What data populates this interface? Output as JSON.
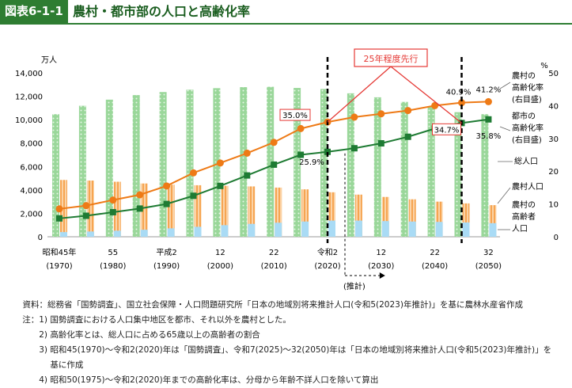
{
  "header": {
    "figure_label": "図表6-1-1",
    "title": "農村・都市部の人口と高齢化率"
  },
  "colors": {
    "total_bar": "#8fd18f",
    "rural_pop_bar": "#f7b26b",
    "rural_elderly_bar": "#a9dbf5",
    "rural_rate_line": "#ee7a16",
    "urban_rate_line": "#1e7b33",
    "accent_red": "#e53935",
    "header_green": "#2e7d32"
  },
  "chart_data": {
    "type": "bar",
    "x_labels": [
      "昭和45年",
      "",
      "55",
      "",
      "平成2",
      "",
      "12",
      "",
      "22",
      "",
      "令和2",
      "",
      "12",
      "",
      "22",
      "",
      "32"
    ],
    "x_sublabels": [
      "(1970)",
      "",
      "(1980)",
      "",
      "(1990)",
      "",
      "(2000)",
      "",
      "(2010)",
      "",
      "(2020)",
      "",
      "(2030)",
      "",
      "(2040)",
      "",
      "(2050)"
    ],
    "left_axis_unit": "万人",
    "right_axis_unit": "%",
    "left_ylim": [
      0,
      14000
    ],
    "left_ticks": [
      "0",
      "2,000",
      "4,000",
      "6,000",
      "8,000",
      "10,000",
      "12,000",
      "14,000"
    ],
    "right_ylim": [
      0,
      50
    ],
    "right_ticks": [
      "0",
      "10",
      "20",
      "30",
      "40",
      "50"
    ],
    "series": [
      {
        "name": "総人口",
        "axis": "left",
        "kind": "bar",
        "values": [
          10470,
          11190,
          11710,
          12100,
          12360,
          12560,
          12690,
          12780,
          12810,
          12710,
          12620,
          12250,
          11910,
          11520,
          11090,
          10640,
          10470
        ]
      },
      {
        "name": "農村人口",
        "axis": "left",
        "kind": "bar",
        "values": [
          4850,
          4800,
          4700,
          4550,
          4450,
          4400,
          4350,
          4300,
          4200,
          4050,
          3800,
          3600,
          3400,
          3200,
          3000,
          2850,
          2700
        ]
      },
      {
        "name": "農村の高齢者人口",
        "axis": "left",
        "kind": "bar",
        "values": [
          400,
          450,
          520,
          600,
          720,
          850,
          990,
          1100,
          1200,
          1300,
          1380,
          1380,
          1340,
          1300,
          1270,
          1220,
          1160
        ]
      },
      {
        "name": "農村の高齢化率",
        "axis": "right",
        "kind": "line",
        "values": [
          8.5,
          9.5,
          11.2,
          12.8,
          15.5,
          19.5,
          22.5,
          25.5,
          28.8,
          33.0,
          35.0,
          36.5,
          37.5,
          38.5,
          40.0,
          40.9,
          41.2
        ]
      },
      {
        "name": "都市の高齢化率",
        "axis": "right",
        "kind": "line",
        "values": [
          5.6,
          6.4,
          7.5,
          8.6,
          10.0,
          12.5,
          15.5,
          18.7,
          22.0,
          25.0,
          25.9,
          27.0,
          28.5,
          30.5,
          33.0,
          34.7,
          35.8
        ]
      }
    ],
    "legend": [
      "農村の\n高齢化率\n(右目盛)",
      "都市の\n高齢化率\n(右目盛)",
      "総人口",
      "農村人口",
      "農村の\n高齢者\n人口"
    ],
    "annotations": {
      "callout": "25年程度先行",
      "rural_2020": "35.0%",
      "urban_2020": "25.9%",
      "rural_2045": "40.9%",
      "rural_2050": "41.2%",
      "urban_2045": "34.7%",
      "urban_2050": "35.8%",
      "projection": "(推計)"
    }
  },
  "notes": {
    "source_lead": "資料：",
    "source": "総務省「国勢調査」、国立社会保障・人口問題研究所「日本の地域別将来推計人口(令和5(2023)年推計)」を基に農林水産省作成",
    "notes_lead": "注：1)",
    "note1": "国勢調査における人口集中地区を都市、それ以外を農村とした。",
    "note2_lead": "2)",
    "note2": "高齢化率とは、総人口に占める65歳以上の高齢者の割合",
    "note3_lead": "3)",
    "note3": "昭和45(1970)〜令和2(2020)年は「国勢調査」、令和7(2025)〜32(2050)年は「日本の地域別将来推計人口(令和5(2023)年推計)」を",
    "note3b": "基に作成",
    "note4_lead": "4)",
    "note4": "昭和50(1975)〜令和2(2020)年までの高齢化率は、分母から年齢不詳人口を除いて算出"
  }
}
